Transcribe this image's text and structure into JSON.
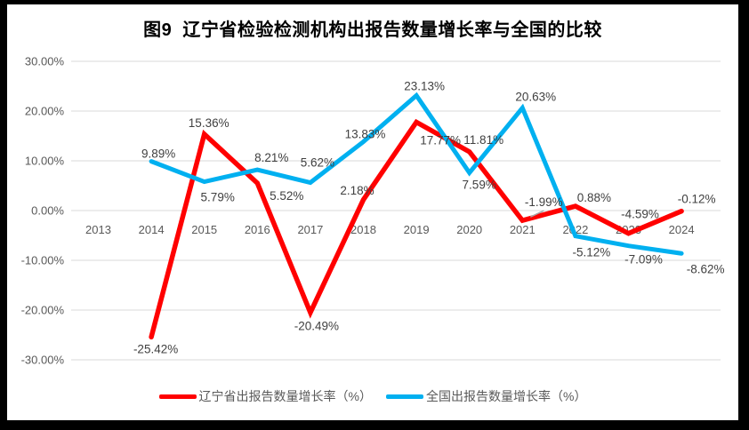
{
  "title": "图9  辽宁省检验检测机构出报告数量增长率与全国的比较",
  "chart_data": {
    "type": "line",
    "title": "图9  辽宁省检验检测机构出报告数量增长率与全国的比较",
    "xlabel": "",
    "ylabel": "",
    "categories": [
      "2013",
      "2014",
      "2015",
      "2016",
      "2017",
      "2018",
      "2019",
      "2020",
      "2021",
      "2022",
      "2023",
      "2024"
    ],
    "ylim": [
      -30,
      30
    ],
    "ytick_step": 10,
    "ytick_labels": [
      "30.00%",
      "20.00%",
      "10.00%",
      "0.00%",
      "-10.00%",
      "-20.00%",
      "-30.00%"
    ],
    "grid": true,
    "legend_position": "bottom",
    "gridline_color": "#d9d9d9",
    "series": [
      {
        "name": "辽宁省出报告数量增长率（%）",
        "color": "#ff0000",
        "width": 5.5,
        "years": [
          2014,
          2015,
          2016,
          2017,
          2018,
          2019,
          2020,
          2021,
          2022,
          2023,
          2024
        ],
        "values": [
          -25.42,
          15.36,
          5.52,
          -20.49,
          2.18,
          17.77,
          11.81,
          -1.99,
          0.88,
          -4.59,
          -0.12
        ],
        "labels": [
          "-25.42%",
          "15.36%",
          "5.52%",
          "-20.49%",
          "2.18%",
          "17.77%",
          "11.81%",
          "-1.99%",
          "0.88%",
          "-4.59%",
          "-0.12%"
        ],
        "label_offsets": [
          [
            5,
            18
          ],
          [
            5,
            -8
          ],
          [
            33,
            19
          ],
          [
            7,
            20
          ],
          [
            -7,
            -6
          ],
          [
            27,
            25
          ],
          [
            16,
            -9
          ],
          [
            24,
            -16
          ],
          [
            21,
            -5
          ],
          [
            13,
            -17
          ],
          [
            17,
            -9
          ]
        ],
        "leader_year": 2021
      },
      {
        "name": "全国出报告数量增长率（%）",
        "color": "#00b0f0",
        "width": 5,
        "years": [
          2014,
          2015,
          2016,
          2017,
          2018,
          2019,
          2020,
          2021,
          2022,
          2023,
          2024
        ],
        "values": [
          9.89,
          5.79,
          8.21,
          5.62,
          13.83,
          23.13,
          7.59,
          20.63,
          -5.12,
          -7.09,
          -8.62
        ],
        "labels": [
          "9.89%",
          "5.79%",
          "8.21%",
          "5.62%",
          "13.83%",
          "23.13%",
          "7.59%",
          "20.63%",
          "-5.12%",
          "-7.09%",
          "-8.62%"
        ],
        "label_offsets": [
          [
            8,
            -4
          ],
          [
            15,
            22
          ],
          [
            16,
            -9
          ],
          [
            8,
            -18
          ],
          [
            2,
            -4
          ],
          [
            9,
            -6
          ],
          [
            11,
            18
          ],
          [
            15,
            -8
          ],
          [
            18,
            23
          ],
          [
            17,
            20
          ],
          [
            27,
            22
          ]
        ]
      }
    ]
  }
}
